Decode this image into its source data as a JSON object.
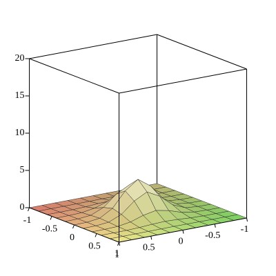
{
  "chart_data": {
    "type": "surface",
    "x": [
      -1,
      -0.8,
      -0.6,
      -0.4,
      -0.2,
      0,
      0.2,
      0.4,
      0.6,
      0.8,
      1
    ],
    "y": [
      -1,
      -0.8,
      -0.6,
      -0.4,
      -0.2,
      0,
      0.2,
      0.4,
      0.6,
      0.8,
      1
    ],
    "z": [
      [
        0,
        0,
        0,
        0,
        0,
        0,
        0,
        0,
        0,
        0,
        0
      ],
      [
        0,
        0,
        0,
        0.01,
        0.02,
        0.03,
        0.02,
        0.01,
        0,
        0,
        0
      ],
      [
        0,
        0,
        0.01,
        0.07,
        0.18,
        0.25,
        0.18,
        0.07,
        0.01,
        0,
        0
      ],
      [
        0,
        0.01,
        0.07,
        0.35,
        0.91,
        1.25,
        0.91,
        0.35,
        0.07,
        0.01,
        0
      ],
      [
        0,
        0.02,
        0.18,
        0.91,
        2.37,
        3.27,
        2.37,
        0.91,
        0.18,
        0.02,
        0
      ],
      [
        0,
        0.03,
        0.25,
        1.25,
        3.27,
        4.5,
        3.27,
        1.25,
        0.25,
        0.03,
        0
      ],
      [
        0,
        0.02,
        0.18,
        0.91,
        2.37,
        3.27,
        2.37,
        0.91,
        0.18,
        0.02,
        0
      ],
      [
        0,
        0.01,
        0.07,
        0.35,
        0.91,
        1.25,
        0.91,
        0.35,
        0.07,
        0.01,
        0
      ],
      [
        0,
        0,
        0.01,
        0.07,
        0.18,
        0.25,
        0.18,
        0.07,
        0.01,
        0,
        0
      ],
      [
        0,
        0,
        0,
        0.01,
        0.02,
        0.03,
        0.02,
        0.01,
        0,
        0,
        0
      ],
      [
        0,
        0,
        0,
        0,
        0,
        0,
        0,
        0,
        0,
        0,
        0
      ]
    ],
    "xlim": [
      -1,
      1
    ],
    "ylim": [
      -1,
      1
    ],
    "zlim": [
      0,
      20
    ],
    "xticks": [
      -1,
      -0.5,
      0,
      0.5,
      1
    ],
    "yticks": [
      -1,
      -0.5,
      0,
      0.5,
      1
    ],
    "zticks": [
      0,
      5,
      10,
      15,
      20
    ]
  }
}
